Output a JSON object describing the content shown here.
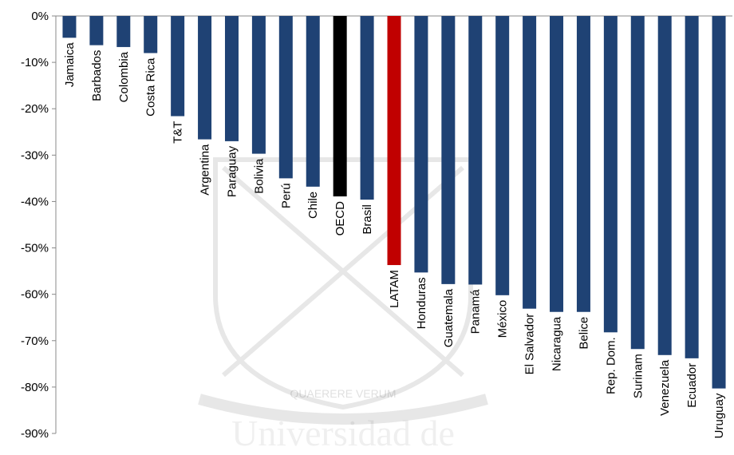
{
  "chart_data": {
    "type": "bar",
    "title": "",
    "xlabel": "",
    "ylabel": "",
    "ylim": [
      -90,
      0
    ],
    "yticks": [
      0,
      -10,
      -20,
      -30,
      -40,
      -50,
      -60,
      -70,
      -80,
      -90
    ],
    "ytick_labels": [
      "0%",
      "-10%",
      "-20%",
      "-30%",
      "-40%",
      "-50%",
      "-60%",
      "-70%",
      "-80%",
      "-90%"
    ],
    "grid": false,
    "categories": [
      "Jamaica",
      "Barbados",
      "Colombia",
      "Costa Rica",
      "T&T",
      "Argentina",
      "Paraguay",
      "Bolivia",
      "Perú",
      "Chile",
      "OECD",
      "Brasil",
      "LATAM",
      "Honduras",
      "Guatemala",
      "Panamá",
      "México",
      "El Salvador",
      "Nicaragua",
      "Belice",
      "Rep. Dom.",
      "Surinam",
      "Venezuela",
      "Ecuador",
      "Uruguay"
    ],
    "values": [
      -4.7,
      -6.3,
      -6.7,
      -8.0,
      -21.6,
      -26.6,
      -27.0,
      -29.7,
      -35.0,
      -36.8,
      -38.9,
      -39.6,
      -53.7,
      -55.3,
      -57.8,
      -57.9,
      -60.2,
      -63.1,
      -63.8,
      -63.8,
      -68.2,
      -71.8,
      -73.1,
      -73.8,
      -80.3
    ],
    "colors": {
      "default": "#1f4274",
      "OECD": "#000000",
      "LATAM": "#c00000",
      "axis": "#898989"
    }
  },
  "watermark": {
    "motto": "QUAERERE VERUM",
    "text": "Universidad de"
  }
}
